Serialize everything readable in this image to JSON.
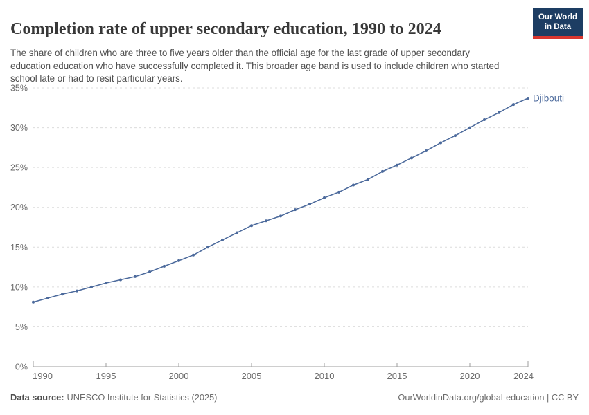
{
  "header": {
    "title": "Completion rate of upper secondary education, 1990 to 2024",
    "subtitle": "The share of children who are three to five years older than the official age for the last grade of upper secondary education education who have successfully completed it. This broader age band is used to include children who started school late or had to resit particular years."
  },
  "logo": {
    "line1": "Our World",
    "line2": "in Data",
    "bg_color": "#1d3d63",
    "bar_color": "#d9362f"
  },
  "chart_data": {
    "type": "line",
    "title": "Completion rate of upper secondary education, 1990 to 2024",
    "xlabel": "",
    "ylabel": "",
    "ylim": [
      0,
      35
    ],
    "grid": "horizontal-dashed",
    "legend_position": "end-of-line-label",
    "x": [
      1990,
      1991,
      1992,
      1993,
      1994,
      1995,
      1996,
      1997,
      1998,
      1999,
      2000,
      2001,
      2002,
      2003,
      2004,
      2005,
      2006,
      2007,
      2008,
      2009,
      2010,
      2011,
      2012,
      2013,
      2014,
      2015,
      2016,
      2017,
      2018,
      2019,
      2020,
      2021,
      2022,
      2023,
      2024
    ],
    "series": [
      {
        "name": "Djibouti",
        "color": "#4C6A9C",
        "values": [
          8.1,
          8.6,
          9.1,
          9.5,
          10.0,
          10.5,
          10.9,
          11.3,
          11.9,
          12.6,
          13.3,
          14.0,
          15.0,
          15.9,
          16.8,
          17.7,
          18.3,
          18.9,
          19.7,
          20.4,
          21.2,
          21.9,
          22.8,
          23.5,
          24.5,
          25.3,
          26.2,
          27.1,
          28.1,
          29.0,
          30.0,
          31.0,
          31.9,
          32.9,
          33.7
        ]
      }
    ],
    "yticks": [
      {
        "value": 0,
        "label": "0%"
      },
      {
        "value": 5,
        "label": "5%"
      },
      {
        "value": 10,
        "label": "10%"
      },
      {
        "value": 15,
        "label": "15%"
      },
      {
        "value": 20,
        "label": "20%"
      },
      {
        "value": 25,
        "label": "25%"
      },
      {
        "value": 30,
        "label": "30%"
      },
      {
        "value": 35,
        "label": "35%"
      }
    ],
    "xticks": [
      1990,
      1995,
      2000,
      2005,
      2010,
      2015,
      2020,
      2024
    ]
  },
  "colors": {
    "line": "#4C6A9C",
    "grid": "#dcdcdc",
    "axis": "#9e9e9e",
    "tick_label": "#6a6a6a"
  },
  "footer": {
    "source_label": "Data source:",
    "source_value": "UNESCO Institute for Statistics (2025)",
    "credit": "OurWorldinData.org/global-education | CC BY"
  }
}
